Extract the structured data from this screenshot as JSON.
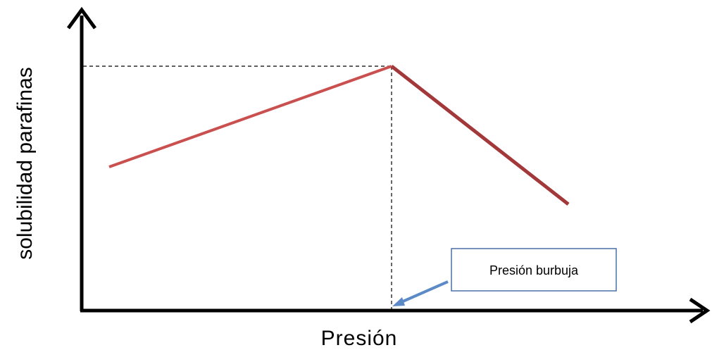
{
  "diagram": {
    "y_axis_label": "solubilidad parafinas",
    "x_axis_label": "Presión",
    "callout_label": "Presión burbuja",
    "colors": {
      "axis": "#000000",
      "line_rising": "#c9504f",
      "line_falling": "#a3383a",
      "guide": "#000000",
      "callout_border": "#4a6fa5",
      "callout_arrow": "#5b8ac6"
    }
  }
}
